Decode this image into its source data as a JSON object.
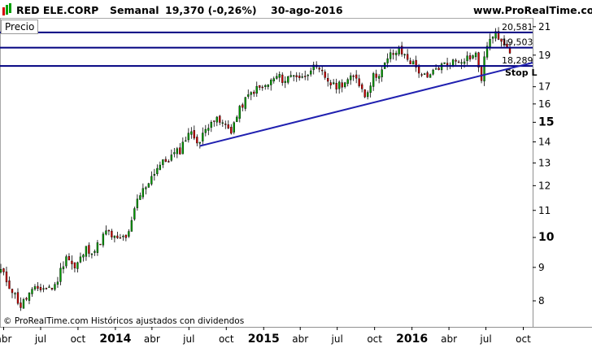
{
  "header": {
    "symbol": "RED ELE.CORP",
    "period": "Semanal",
    "last": "19,370 (-0,26%)",
    "date": "30-ago-2016",
    "brand": "www.ProRealTime.com"
  },
  "panel_label": "Precio",
  "footer_note": "© ProRealTime.com Históricos ajustados con dividendos",
  "colors": {
    "up_candle": "#00a000",
    "down_candle": "#d00000",
    "wick": "#000000",
    "level_lines": "#000080",
    "trend_line": "#2020b0",
    "logo_bars": [
      "#d40000",
      "#00a000",
      "#00a000"
    ]
  },
  "chart_data": {
    "type": "candlestick",
    "title": "RED ELE.CORP Semanal",
    "y_scale": "log",
    "ylim": [
      7.3,
      21.6
    ],
    "y_ticks": [
      {
        "value": 8,
        "label": "8",
        "bold": false
      },
      {
        "value": 9,
        "label": "9",
        "bold": false
      },
      {
        "value": 10,
        "label": "10",
        "bold": true
      },
      {
        "value": 11,
        "label": "11",
        "bold": false
      },
      {
        "value": 12,
        "label": "12",
        "bold": false
      },
      {
        "value": 13,
        "label": "13",
        "bold": false
      },
      {
        "value": 14,
        "label": "14",
        "bold": false
      },
      {
        "value": 15,
        "label": "15",
        "bold": true
      },
      {
        "value": 16,
        "label": "16",
        "bold": false
      },
      {
        "value": 17,
        "label": "17",
        "bold": false
      },
      {
        "value": 19,
        "label": "19",
        "bold": false
      },
      {
        "value": 21,
        "label": "21",
        "bold": false
      }
    ],
    "x_range": [
      "2013-03-25",
      "2016-10-24"
    ],
    "x_ticks": [
      {
        "date": "2013-04-01",
        "label": "abr",
        "bold": false
      },
      {
        "date": "2013-07-01",
        "label": "jul",
        "bold": false
      },
      {
        "date": "2013-10-01",
        "label": "oct",
        "bold": false
      },
      {
        "date": "2014-01-01",
        "label": "2014",
        "bold": true
      },
      {
        "date": "2014-04-01",
        "label": "abr",
        "bold": false
      },
      {
        "date": "2014-07-01",
        "label": "jul",
        "bold": false
      },
      {
        "date": "2014-10-01",
        "label": "oct",
        "bold": false
      },
      {
        "date": "2015-01-01",
        "label": "2015",
        "bold": true
      },
      {
        "date": "2015-04-01",
        "label": "abr",
        "bold": false
      },
      {
        "date": "2015-07-01",
        "label": "jul",
        "bold": false
      },
      {
        "date": "2015-10-01",
        "label": "oct",
        "bold": false
      },
      {
        "date": "2016-01-01",
        "label": "2016",
        "bold": true
      },
      {
        "date": "2016-04-01",
        "label": "abr",
        "bold": false
      },
      {
        "date": "2016-07-01",
        "label": "jul",
        "bold": false
      },
      {
        "date": "2016-10-01",
        "label": "oct",
        "bold": false
      }
    ],
    "horizontal_levels": [
      {
        "value": 20.581,
        "label": "20,581"
      },
      {
        "value": 19.503,
        "label": "19,503"
      },
      {
        "value": 18.289,
        "label": "18,289"
      }
    ],
    "stop_label": "Stop L",
    "trend_line": {
      "start": {
        "date": "2014-07-28",
        "value": 13.8
      },
      "end": {
        "date": "2016-10-24",
        "value": 18.5
      }
    },
    "close_anchors": [
      [
        "2013-03-25",
        8.9
      ],
      [
        "2013-04-22",
        8.3
      ],
      [
        "2013-05-13",
        7.85
      ],
      [
        "2013-06-03",
        8.2
      ],
      [
        "2013-06-24",
        8.35
      ],
      [
        "2013-08-05",
        8.4
      ],
      [
        "2013-09-02",
        9.4
      ],
      [
        "2013-09-23",
        8.95
      ],
      [
        "2013-10-21",
        9.6
      ],
      [
        "2013-11-11",
        9.55
      ],
      [
        "2013-12-09",
        10.2
      ],
      [
        "2014-01-06",
        9.9
      ],
      [
        "2014-02-03",
        10.1
      ],
      [
        "2014-02-24",
        11.4
      ],
      [
        "2014-03-17",
        12.0
      ],
      [
        "2014-04-14",
        12.8
      ],
      [
        "2014-05-12",
        13.2
      ],
      [
        "2014-06-09",
        13.6
      ],
      [
        "2014-06-30",
        14.5
      ],
      [
        "2014-07-28",
        14.0
      ],
      [
        "2014-08-25",
        15.2
      ],
      [
        "2014-09-15",
        15.0
      ],
      [
        "2014-10-13",
        14.6
      ],
      [
        "2014-11-10",
        16.0
      ],
      [
        "2014-12-08",
        16.8
      ],
      [
        "2015-01-05",
        17.0
      ],
      [
        "2015-02-02",
        17.6
      ],
      [
        "2015-02-23",
        17.4
      ],
      [
        "2015-03-16",
        17.8
      ],
      [
        "2015-04-06",
        17.5
      ],
      [
        "2015-04-27",
        18.2
      ],
      [
        "2015-05-25",
        17.8
      ],
      [
        "2015-06-22",
        17.0
      ],
      [
        "2015-07-20",
        17.3
      ],
      [
        "2015-08-17",
        17.6
      ],
      [
        "2015-09-07",
        16.5
      ],
      [
        "2015-09-28",
        17.6
      ],
      [
        "2015-10-19",
        18.0
      ],
      [
        "2015-11-09",
        19.0
      ],
      [
        "2015-11-30",
        19.3
      ],
      [
        "2015-12-21",
        18.8
      ],
      [
        "2016-01-18",
        18.0
      ],
      [
        "2016-02-08",
        17.4
      ],
      [
        "2016-02-29",
        18.1
      ],
      [
        "2016-03-21",
        18.4
      ],
      [
        "2016-04-18",
        18.6
      ],
      [
        "2016-05-09",
        18.8
      ],
      [
        "2016-06-06",
        19.0
      ],
      [
        "2016-06-20",
        17.5
      ],
      [
        "2016-07-04",
        19.8
      ],
      [
        "2016-07-25",
        20.4
      ],
      [
        "2016-08-15",
        20.0
      ],
      [
        "2016-08-29",
        19.37
      ]
    ]
  }
}
